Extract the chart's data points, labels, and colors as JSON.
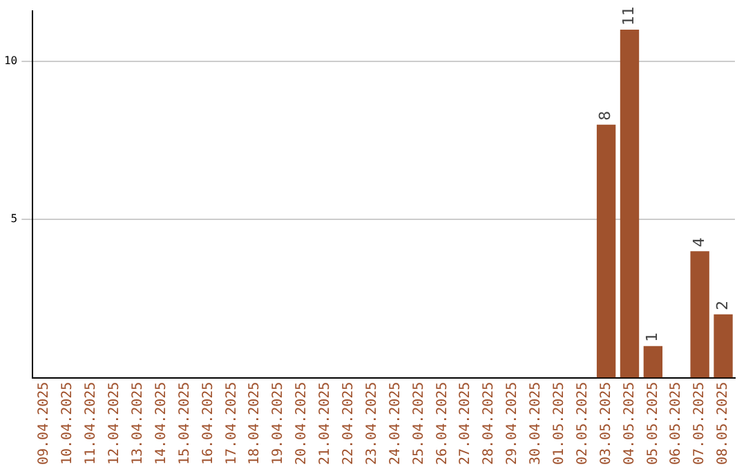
{
  "chart_data": {
    "type": "bar",
    "categories": [
      "09.04.2025",
      "10.04.2025",
      "11.04.2025",
      "12.04.2025",
      "13.04.2025",
      "14.04.2025",
      "15.04.2025",
      "16.04.2025",
      "17.04.2025",
      "18.04.2025",
      "19.04.2025",
      "20.04.2025",
      "21.04.2025",
      "22.04.2025",
      "23.04.2025",
      "24.04.2025",
      "25.04.2025",
      "26.04.2025",
      "27.04.2025",
      "28.04.2025",
      "29.04.2025",
      "30.04.2025",
      "01.05.2025",
      "02.05.2025",
      "03.05.2025",
      "04.05.2025",
      "05.05.2025",
      "06.05.2025",
      "07.05.2025",
      "08.05.2025"
    ],
    "values": [
      0,
      0,
      0,
      0,
      0,
      0,
      0,
      0,
      0,
      0,
      0,
      0,
      0,
      0,
      0,
      0,
      0,
      0,
      0,
      0,
      0,
      0,
      0,
      0,
      8,
      11,
      1,
      0,
      4,
      2
    ],
    "value_labels": [
      null,
      null,
      null,
      null,
      null,
      null,
      null,
      null,
      null,
      null,
      null,
      null,
      null,
      null,
      null,
      null,
      null,
      null,
      null,
      null,
      null,
      null,
      null,
      null,
      "8",
      "11",
      "1",
      null,
      "4",
      "2"
    ],
    "color": "#a0522d",
    "ylim": [
      0,
      11.6
    ],
    "yticks": [
      5,
      10
    ],
    "grid": "y",
    "legend": false
  }
}
